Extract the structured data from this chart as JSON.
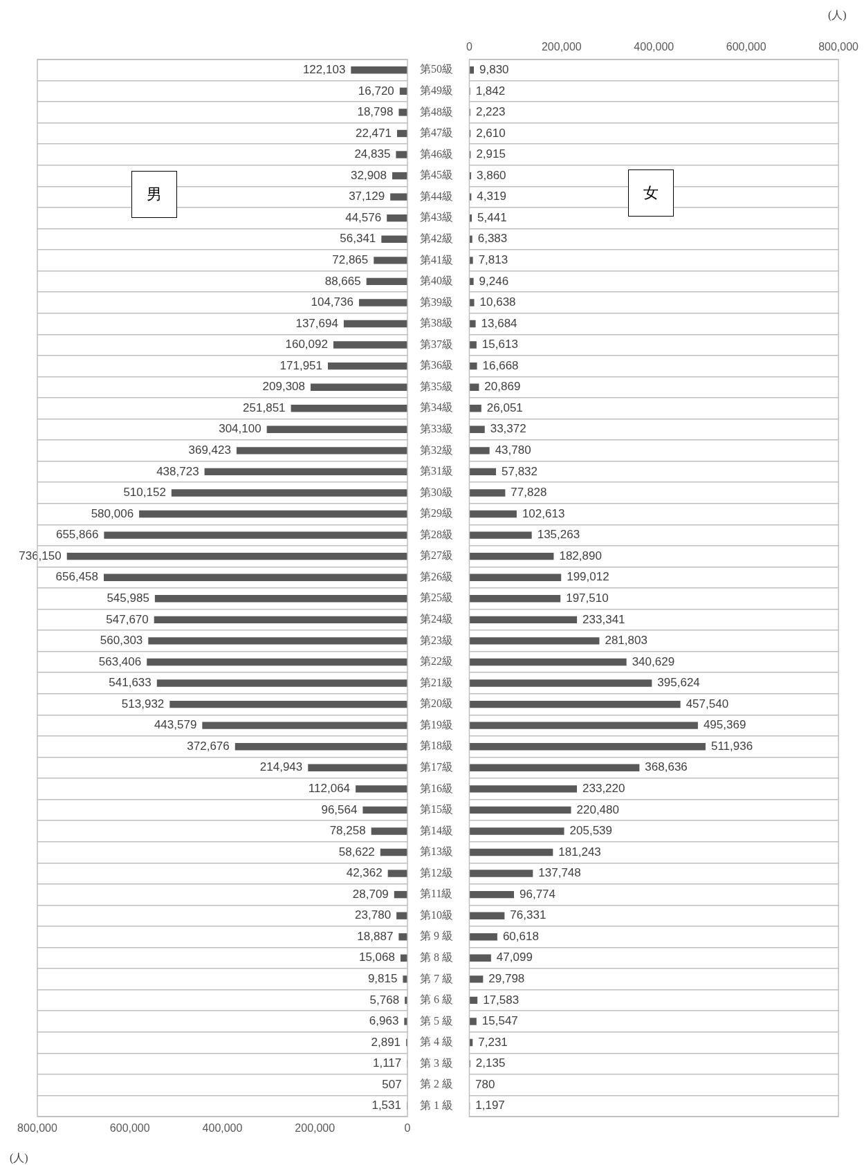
{
  "chart_data": [
    {
      "type": "bar",
      "orientation": "horizontal",
      "annotations": [
        "男",
        "(人)"
      ],
      "grid": "y",
      "categories": [
        "第50級",
        "第49級",
        "第48級",
        "第47級",
        "第46級",
        "第45級",
        "第44級",
        "第43級",
        "第42級",
        "第41級",
        "第40級",
        "第39級",
        "第38級",
        "第37級",
        "第36級",
        "第35級",
        "第34級",
        "第33級",
        "第32級",
        "第31級",
        "第30級",
        "第29級",
        "第28級",
        "第27級",
        "第26級",
        "第25級",
        "第24級",
        "第23級",
        "第22級",
        "第21級",
        "第20級",
        "第19級",
        "第18級",
        "第17級",
        "第16級",
        "第15級",
        "第14級",
        "第13級",
        "第12級",
        "第11級",
        "第10級",
        "第 9 級",
        "第 8 級",
        "第 7 級",
        "第 6 級",
        "第 5 級",
        "第 4 級",
        "第 3 級",
        "第 2 級",
        "第 1 級"
      ],
      "color": "#595959",
      "values": [
        122103,
        16720,
        18798,
        22471,
        24835,
        32908,
        37129,
        44576,
        56341,
        72865,
        88665,
        104736,
        137694,
        160092,
        171951,
        209308,
        251851,
        304100,
        369423,
        438723,
        510152,
        580006,
        655866,
        736150,
        656458,
        545985,
        547670,
        560303,
        563406,
        541633,
        513932,
        443579,
        372676,
        214943,
        112064,
        96564,
        78258,
        58622,
        42362,
        28709,
        23780,
        18887,
        15068,
        9815,
        5768,
        6963,
        2891,
        1117,
        507,
        1531
      ],
      "value_labels": [
        "122,103",
        "16,720",
        "18,798",
        "22,471",
        "24,835",
        "32,908",
        "37,129",
        "44,576",
        "56,341",
        "72,865",
        "88,665",
        "104,736",
        "137,694",
        "160,092",
        "171,951",
        "209,308",
        "251,851",
        "304,100",
        "369,423",
        "438,723",
        "510,152",
        "580,006",
        "655,866",
        "736,150",
        "656,458",
        "545,985",
        "547,670",
        "560,303",
        "563,406",
        "541,633",
        "513,932",
        "443,579",
        "372,676",
        "214,943",
        "112,064",
        "96,564",
        "78,258",
        "58,622",
        "42,362",
        "28,709",
        "23,780",
        "18,887",
        "15,068",
        "9,815",
        "5,768",
        "6,963",
        "2,891",
        "1,117",
        "507",
        "1,531"
      ],
      "xlim": [
        800000,
        0
      ],
      "xticks": [
        {
          "value": 800000,
          "label": "800,000"
        },
        {
          "value": 600000,
          "label": "600,000"
        },
        {
          "value": 400000,
          "label": "400,000"
        },
        {
          "value": 200000,
          "label": "200,000"
        },
        0
      ]
    },
    {
      "type": "bar",
      "orientation": "horizontal",
      "annotations": [
        "女",
        "(人)"
      ],
      "grid": "y",
      "categories": [
        null,
        null,
        null,
        null,
        null,
        null,
        null,
        null,
        null,
        null,
        null,
        null,
        null,
        null,
        null,
        null,
        null,
        null,
        null,
        null,
        null,
        null,
        null,
        null,
        null,
        null,
        null,
        null,
        null,
        null,
        null,
        null,
        null,
        null,
        null,
        null,
        null,
        null,
        null,
        null,
        null,
        null,
        null,
        null,
        null,
        null,
        null,
        null,
        null,
        null
      ],
      "color": "#595959",
      "values": [
        9830,
        1842,
        2223,
        2610,
        2915,
        3860,
        4319,
        5441,
        6383,
        7813,
        9246,
        10638,
        13684,
        15613,
        16668,
        20869,
        26051,
        33372,
        43780,
        57832,
        77828,
        102613,
        135263,
        182890,
        199012,
        197510,
        233341,
        281803,
        340629,
        395624,
        457540,
        495369,
        511936,
        368636,
        233220,
        220480,
        205539,
        181243,
        137748,
        96774,
        76331,
        60618,
        47099,
        29798,
        17583,
        15547,
        7231,
        2135,
        780,
        1197
      ],
      "value_labels": [
        "9,830",
        "1,842",
        "2,223",
        "2,610",
        "2,915",
        "3,860",
        "4,319",
        "5,441",
        "6,383",
        "7,813",
        "9,246",
        "10,638",
        "13,684",
        "15,613",
        "16,668",
        "20,869",
        "26,051",
        "33,372",
        "43,780",
        "57,832",
        "77,828",
        "102,613",
        "135,263",
        "182,890",
        "199,012",
        "197,510",
        "233,341",
        "281,803",
        "340,629",
        "395,624",
        "457,540",
        "495,369",
        "511,936",
        "368,636",
        "233,220",
        "220,480",
        "205,539",
        "181,243",
        "137,748",
        "96,774",
        "76,331",
        "60,618",
        "47,099",
        "29,798",
        "17,583",
        "15,547",
        "7,231",
        "2,135",
        "780",
        "1,197"
      ],
      "x2lim": [
        0,
        800000
      ],
      "x2ticks": [
        0,
        {
          "value": 200000,
          "label": "200,000"
        },
        {
          "value": 400000,
          "label": "400,000"
        },
        {
          "value": 600000,
          "label": "600,000"
        },
        {
          "value": 800000,
          "label": "800,000"
        }
      ]
    }
  ]
}
